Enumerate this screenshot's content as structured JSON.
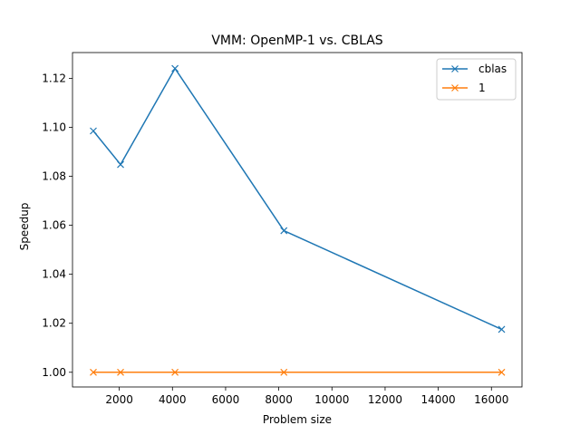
{
  "chart_data": {
    "type": "line",
    "title": "VMM: OpenMP-1 vs. CBLAS",
    "xlabel": "Problem size",
    "ylabel": "Speedup",
    "xlim": [
      240,
      17150
    ],
    "ylim": [
      0.994,
      1.1305
    ],
    "xticks": [
      2000,
      4000,
      6000,
      8000,
      10000,
      12000,
      14000,
      16000
    ],
    "yticks": [
      1.0,
      1.02,
      1.04,
      1.06,
      1.08,
      1.1,
      1.12
    ],
    "grid": false,
    "legend_position": "top-right",
    "x": [
      1024,
      2048,
      4096,
      8192,
      16384
    ],
    "series": [
      {
        "name": "cblas",
        "color": "#1f77b4",
        "marker": "x",
        "values": [
          1.0985,
          1.0848,
          1.124,
          1.0578,
          1.0175
        ]
      },
      {
        "name": "1",
        "color": "#ff7f0e",
        "marker": "x",
        "values": [
          1.0,
          1.0,
          1.0,
          1.0,
          1.0
        ]
      }
    ]
  }
}
